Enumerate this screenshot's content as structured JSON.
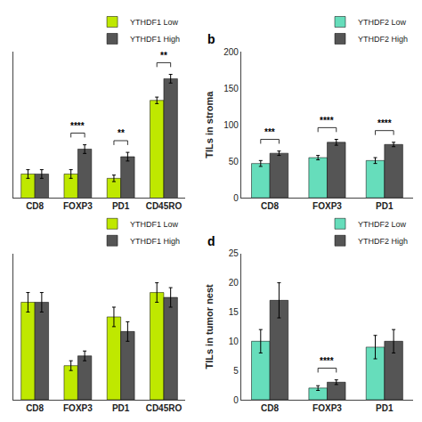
{
  "chart_data": [
    {
      "type": "bar",
      "categories": [
        "CD8",
        "FOXP3",
        "PD1",
        "CD45RO"
      ],
      "series": [
        {
          "name": "YTHDF1 Low",
          "color": "#bfe800",
          "values": [
            82,
            82,
            78,
            150
          ],
          "errors": [
            4,
            4,
            3,
            3
          ]
        },
        {
          "name": "YTHDF1 High",
          "color": "#555555",
          "values": [
            82,
            105,
            98,
            170
          ],
          "errors": [
            4,
            4,
            4,
            4
          ]
        }
      ],
      "annotations": [
        {
          "text": "****",
          "x": "FOXP3"
        },
        {
          "text": "**",
          "x": "PD1"
        },
        {
          "text": "**",
          "x": "CD45RO"
        }
      ],
      "ylim": [
        60,
        195
      ],
      "yticks": [],
      "grid": false,
      "tick_labels": "x"
    },
    {
      "type": "bar",
      "title": "b",
      "ylabel": "TILs in stroma",
      "categories": [
        "CD8",
        "FOXP3",
        "PD1"
      ],
      "series": [
        {
          "name": "YTHDF2 Low",
          "color": "#66ddbb",
          "values": [
            47,
            55,
            51
          ],
          "errors": [
            4,
            3,
            4
          ]
        },
        {
          "name": "YTHDF2 High",
          "color": "#555555",
          "values": [
            61,
            76,
            73
          ],
          "errors": [
            3,
            4,
            3
          ]
        }
      ],
      "annotations": [
        {
          "text": "***",
          "x": "CD8"
        },
        {
          "text": "****",
          "x": "FOXP3"
        },
        {
          "text": "****",
          "x": "PD1"
        }
      ],
      "ylim": [
        0,
        200
      ],
      "yticks": [
        0,
        50,
        100,
        150,
        200
      ],
      "grid": false
    },
    {
      "type": "bar",
      "categories": [
        "CD8",
        "FOXP3",
        "PD1",
        "CD45RO"
      ],
      "series": [
        {
          "name": "YTHDF1 Low",
          "color": "#bfe800",
          "values": [
            20,
            7,
            17,
            22
          ],
          "errors": [
            2,
            1,
            2,
            2
          ]
        },
        {
          "name": "YTHDF1 High",
          "color": "#555555",
          "values": [
            20,
            9,
            14,
            21
          ],
          "errors": [
            2,
            1,
            2,
            2
          ]
        }
      ],
      "annotations": [],
      "ylim": [
        0,
        30
      ],
      "yticks": [],
      "grid": false,
      "tick_labels": "x"
    },
    {
      "type": "bar",
      "title": "d",
      "ylabel": "TILs in tumor nest",
      "categories": [
        "CD8",
        "FOXP3",
        "PD1"
      ],
      "series": [
        {
          "name": "YTHDF2 Low",
          "color": "#66ddbb",
          "values": [
            10,
            2,
            9
          ],
          "errors": [
            2,
            0.4,
            2
          ]
        },
        {
          "name": "YTHDF2 High",
          "color": "#555555",
          "values": [
            17,
            3,
            10
          ],
          "errors": [
            3,
            0.4,
            2
          ]
        }
      ],
      "annotations": [
        {
          "text": "****",
          "x": "FOXP3"
        }
      ],
      "ylim": [
        0,
        25
      ],
      "yticks": [
        0,
        5,
        10,
        15,
        20,
        25
      ],
      "grid": false
    }
  ]
}
